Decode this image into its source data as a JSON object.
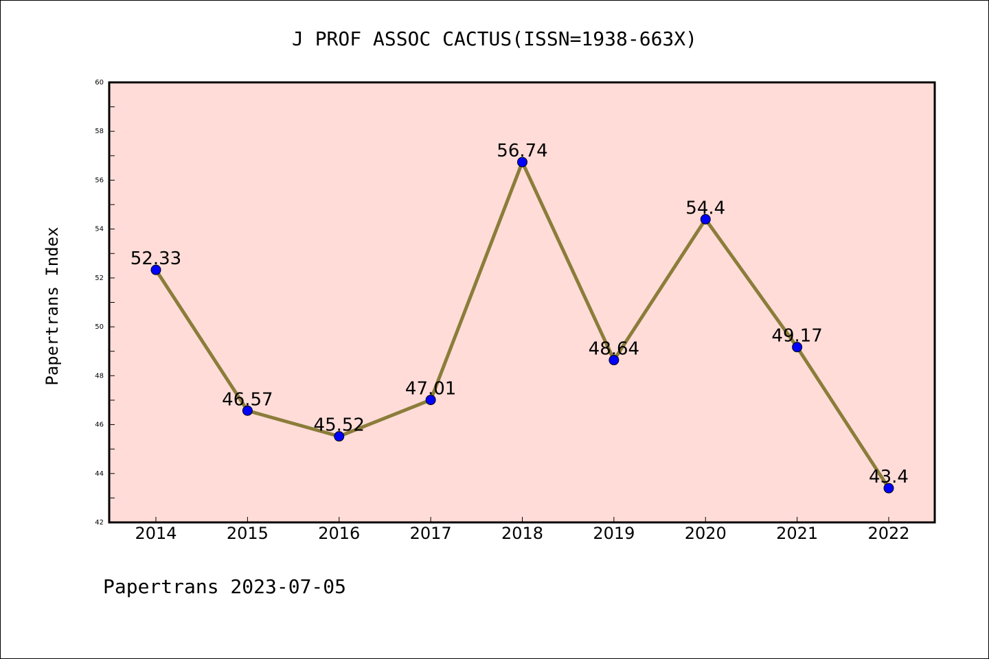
{
  "chart_data": {
    "type": "line",
    "title": "J PROF ASSOC CACTUS(ISSN=1938-663X)",
    "ylabel": "Papertrans Index",
    "xlabel": "",
    "footer": "Papertrans 2023-07-05",
    "categories": [
      "2014",
      "2015",
      "2016",
      "2017",
      "2018",
      "2019",
      "2020",
      "2021",
      "2022"
    ],
    "series": [
      {
        "values": [
          52.33,
          46.57,
          45.52,
          47.01,
          56.74,
          48.64,
          54.4,
          49.17,
          43.4
        ],
        "labels": [
          "52.33",
          "46.57",
          "45.52",
          "47.01",
          "56.74",
          "48.64",
          "54.4",
          "49.17",
          "43.4"
        ],
        "line_color": "#8b7d3a",
        "marker_color": "#0000ff"
      }
    ],
    "ylim": [
      42,
      60
    ],
    "yticks": [
      "42",
      "44",
      "46",
      "48",
      "50",
      "52",
      "54",
      "56",
      "58",
      "60"
    ],
    "plot_background": "#ffdcd8",
    "grid": false,
    "legend": "none"
  }
}
